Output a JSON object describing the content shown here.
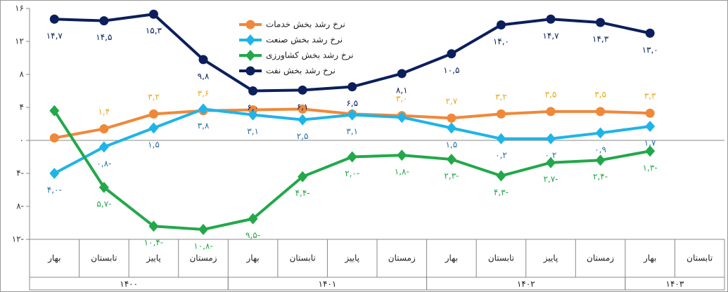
{
  "chart_data": {
    "type": "line",
    "categories": [
      "بهار",
      "تابستان",
      "پاییز",
      "زمستان",
      "بهار",
      "تابستان",
      "پاییز",
      "زمستان",
      "بهار",
      "تابستان",
      "پاییز",
      "زمستان",
      "بهار",
      "تابستان"
    ],
    "groups": [
      {
        "label": "۱۴۰۰",
        "span": 4
      },
      {
        "label": "۱۴۰۱",
        "span": 4
      },
      {
        "label": "۱۴۰۲",
        "span": 4
      },
      {
        "label": "۱۴۰۳",
        "span": 2
      }
    ],
    "ylim": [
      -12,
      16
    ],
    "yticks": [
      {
        "value": -12,
        "label": "۱۲-"
      },
      {
        "value": -8,
        "label": "۸-"
      },
      {
        "value": -4,
        "label": "۴-"
      },
      {
        "value": 0,
        "label": "۰"
      },
      {
        "value": 4,
        "label": "۴"
      },
      {
        "value": 8,
        "label": "۸"
      },
      {
        "value": 12,
        "label": "۱۲"
      },
      {
        "value": 16,
        "label": "۱۶"
      }
    ],
    "grid": false,
    "series": [
      {
        "name": "نرخ رشد بخش خدمات",
        "color": "#f0883a",
        "label_color": "#e8a91c",
        "marker": "circle",
        "values": [
          0.3,
          1.4,
          3.2,
          3.6,
          3.7,
          3.8,
          3.2,
          3.0,
          2.7,
          3.2,
          3.5,
          3.5,
          3.3,
          null
        ],
        "value_labels": [
          null,
          "۱,۴",
          "۳,۲",
          "۳,۶",
          null,
          null,
          null,
          "۳,۰",
          "۲,۷",
          "۳,۲",
          "۳,۵",
          "۳,۵",
          "۳,۳",
          null
        ]
      },
      {
        "name": "نرخ رشد بخش صنعت",
        "color": "#1fb4e8",
        "label_color": "#2a6fa8",
        "marker": "diamond",
        "values": [
          -4.0,
          -0.8,
          1.5,
          3.8,
          3.1,
          2.5,
          3.1,
          2.8,
          1.5,
          0.2,
          0.2,
          0.9,
          1.7,
          null
        ],
        "value_labels": [
          "۴,۰-",
          "۰,۸-",
          "۱,۵",
          "۳,۸",
          "۳,۱",
          "۲,۵",
          "۳,۱",
          null,
          "۱,۵",
          "۰,۲",
          "۰,۲",
          "۰,۹",
          "۱,۷",
          null
        ]
      },
      {
        "name": "نرخ رشد بخش کشاورزی",
        "color": "#22a84a",
        "label_color": "#22a84a",
        "marker": "diamond",
        "values": [
          3.6,
          -5.7,
          -10.4,
          -10.8,
          -9.5,
          -4.4,
          -2.0,
          -1.8,
          -2.3,
          -4.3,
          -2.7,
          -2.4,
          -1.3,
          null
        ],
        "value_labels": [
          null,
          "۵,۷-",
          "۱۰,۴-",
          "۱۰,۸-",
          "۹,۵-",
          "۴,۴-",
          "۲,۰-",
          "۱,۸-",
          "۲,۳-",
          "۴,۳-",
          "۲,۷-",
          "۲,۴-",
          "۱,۳-",
          null
        ]
      },
      {
        "name": "نرخ رشد بخش نفت",
        "color": "#0c1f5c",
        "label_color": "#0c1f5c",
        "marker": "circle",
        "values": [
          14.7,
          14.5,
          15.3,
          9.8,
          6.0,
          6.1,
          6.5,
          8.1,
          10.5,
          14.0,
          14.7,
          14.3,
          13.0,
          null
        ],
        "value_labels": [
          "۱۴,۷",
          "۱۴,۵",
          "۱۵,۳",
          "۹,۸",
          "۶,۰",
          "۶,۱",
          "۶,۵",
          "۸,۱",
          "۱۰,۵",
          "۱۴,۰",
          "۱۴,۷",
          "۱۴,۳",
          "۱۳,۰",
          null
        ]
      }
    ]
  }
}
